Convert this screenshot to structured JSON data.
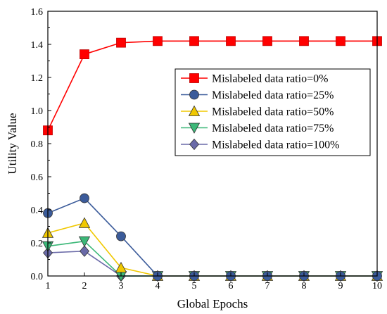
{
  "chart_data": {
    "type": "line",
    "title": "",
    "xlabel": "Global Epochs",
    "ylabel": "Utility Value",
    "x": [
      1,
      2,
      3,
      4,
      5,
      6,
      7,
      8,
      9,
      10
    ],
    "xlim": [
      1,
      10
    ],
    "ylim": [
      0.0,
      1.6
    ],
    "xticks": [
      "1",
      "2",
      "3",
      "4",
      "5",
      "6",
      "7",
      "8",
      "9",
      "10"
    ],
    "yticks": [
      "0.0",
      "0.2",
      "0.4",
      "0.6",
      "0.8",
      "1.0",
      "1.2",
      "1.4",
      "1.6"
    ],
    "grid": false,
    "legend_position": "right",
    "series": [
      {
        "name": "Mislabeled data ratio=0%",
        "color": "#ff0000",
        "marker": "square",
        "values": [
          0.88,
          1.34,
          1.41,
          1.42,
          1.42,
          1.42,
          1.42,
          1.42,
          1.42,
          1.42
        ]
      },
      {
        "name": "Mislabeled data ratio=25%",
        "color": "#3b5b9a",
        "marker": "circle",
        "values": [
          0.38,
          0.47,
          0.24,
          0.0,
          0.0,
          0.0,
          0.0,
          0.0,
          0.0,
          0.0
        ]
      },
      {
        "name": "Mislabeled data ratio=50%",
        "color": "#f0c800",
        "marker": "triangle-up",
        "values": [
          0.26,
          0.32,
          0.05,
          0.0,
          0.0,
          0.0,
          0.0,
          0.0,
          0.0,
          0.0
        ]
      },
      {
        "name": "Mislabeled data ratio=75%",
        "color": "#3cb878",
        "marker": "triangle-down",
        "values": [
          0.18,
          0.21,
          0.0,
          0.0,
          0.0,
          0.0,
          0.0,
          0.0,
          0.0,
          0.0
        ]
      },
      {
        "name": "Mislabeled data ratio=100%",
        "color": "#6a6aa8",
        "marker": "diamond",
        "values": [
          0.14,
          0.15,
          0.0,
          0.0,
          0.0,
          0.0,
          0.0,
          0.0,
          0.0,
          0.0
        ]
      }
    ]
  }
}
